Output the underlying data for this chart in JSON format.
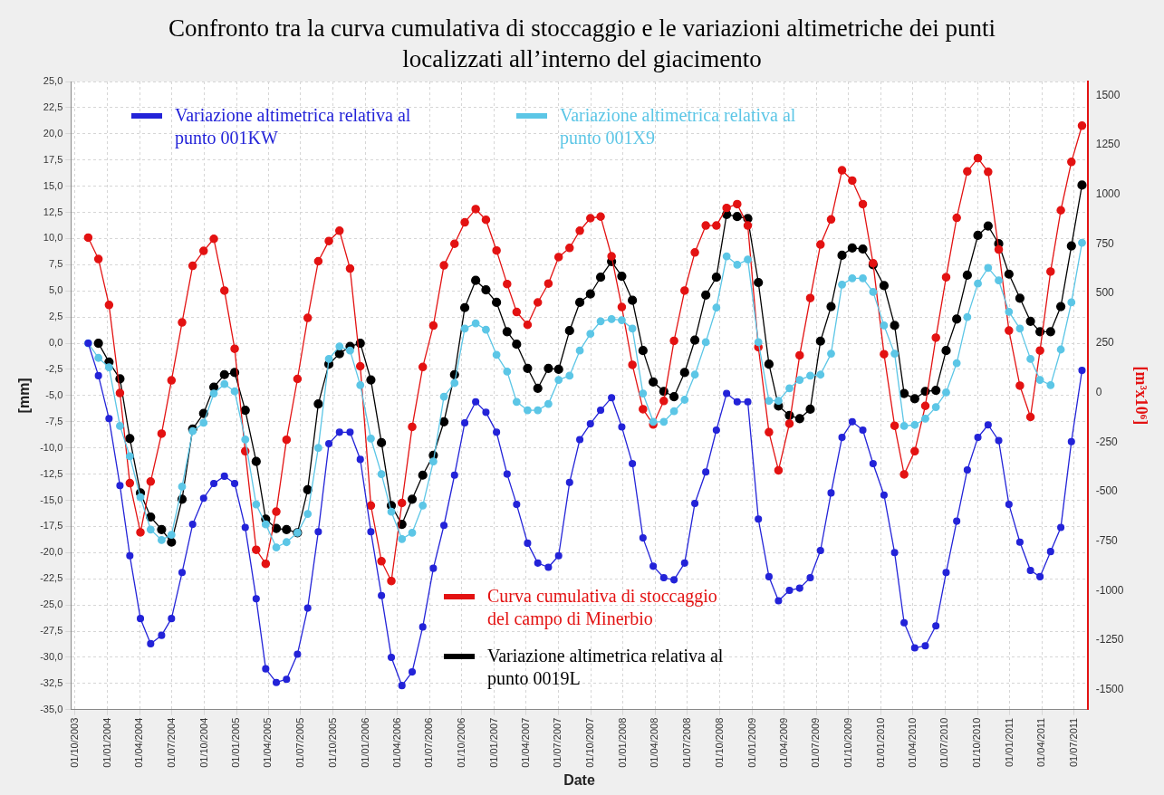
{
  "chart_data": {
    "type": "line",
    "title": "Confronto tra la curva cumulativa di stoccaggio e le variazioni altimetriche dei punti localizzati all’interno del giacimento",
    "xlabel": "Date",
    "ylabel": "[mm]",
    "y2label": "[m³x10⁶]",
    "x": [
      "2003-11-07",
      "2003-12-06",
      "2004-01-05",
      "2004-02-05",
      "2004-03-04",
      "2004-04-03",
      "2004-05-02",
      "2004-06-02",
      "2004-06-30",
      "2004-07-30",
      "2004-08-29",
      "2004-09-29",
      "2004-10-28",
      "2004-11-27",
      "2004-12-26",
      "2005-01-25",
      "2005-02-25",
      "2005-03-24",
      "2005-04-23",
      "2005-05-22",
      "2005-06-22",
      "2005-07-21",
      "2005-08-20",
      "2005-09-19",
      "2005-10-19",
      "2005-11-18",
      "2005-12-17",
      "2006-01-16",
      "2006-02-15",
      "2006-03-15",
      "2006-04-14",
      "2006-05-13",
      "2006-06-12",
      "2006-07-12",
      "2006-08-11",
      "2006-09-10",
      "2006-10-09",
      "2006-11-09",
      "2006-12-08",
      "2007-01-07",
      "2007-02-06",
      "2007-03-05",
      "2007-04-05",
      "2007-05-04",
      "2007-06-03",
      "2007-07-02",
      "2007-08-02",
      "2007-08-31",
      "2007-09-30",
      "2007-10-29",
      "2007-11-29",
      "2007-12-28",
      "2008-01-27",
      "2008-02-26",
      "2008-03-26",
      "2008-04-25",
      "2008-05-24",
      "2008-06-23",
      "2008-07-22",
      "2008-08-22",
      "2008-09-21",
      "2008-10-20",
      "2008-11-19",
      "2008-12-19",
      "2009-01-18",
      "2009-02-17",
      "2009-03-16",
      "2009-04-16",
      "2009-05-15",
      "2009-06-14",
      "2009-07-13",
      "2009-08-12",
      "2009-09-12",
      "2009-10-11",
      "2009-11-10",
      "2009-12-09",
      "2010-01-09",
      "2010-02-08",
      "2010-03-07",
      "2010-04-06",
      "2010-05-06",
      "2010-06-05",
      "2010-07-04",
      "2010-08-03",
      "2010-09-02",
      "2010-10-02",
      "2010-10-31",
      "2010-11-30",
      "2010-12-29",
      "2011-01-29",
      "2011-02-28",
      "2011-03-27",
      "2011-04-26",
      "2011-05-25",
      "2011-06-24",
      "2011-07-24"
    ],
    "series": [
      {
        "name": "Variazione altimetrica relativa al punto 001KW",
        "color": "#2323d8",
        "values": [
          0,
          -3.1,
          -7.2,
          -13.6,
          -20.3,
          -26.3,
          -28.7,
          -27.9,
          -26.3,
          -21.9,
          -17.3,
          -14.8,
          -13.4,
          -12.7,
          -13.4,
          -17.6,
          -24.4,
          -31.1,
          -32.4,
          -32.1,
          -29.7,
          -25.3,
          -18.0,
          -9.6,
          -8.5,
          -8.5,
          -11.1,
          -18.0,
          -24.1,
          -30.0,
          -32.7,
          -31.4,
          -27.1,
          -21.5,
          -17.4,
          -12.6,
          -7.6,
          -5.6,
          -6.6,
          -8.5,
          -12.5,
          -15.4,
          -19.1,
          -21.0,
          -21.4,
          -20.3,
          -13.3,
          -9.2,
          -7.7,
          -6.4,
          -5.2,
          -8.0,
          -11.5,
          -18.6,
          -21.3,
          -22.4,
          -22.6,
          -21.0,
          -15.3,
          -12.3,
          -8.3,
          -4.8,
          -5.6,
          -5.6,
          -16.8,
          -22.3,
          -24.6,
          -23.6,
          -23.4,
          -22.4,
          -19.8,
          -14.3,
          -9.0,
          -7.5,
          -8.3,
          -11.5,
          -14.5,
          -20.0,
          -26.7,
          -29.1,
          -28.9,
          -27.0,
          -21.9,
          -17.0,
          -12.1,
          -9.0,
          -7.8,
          -9.3,
          -15.4,
          -19.0,
          -21.7,
          -22.3,
          -19.9,
          -17.6,
          -9.4,
          -2.6
        ]
      },
      {
        "name": "Variazione altimetrica relativa al punto 001X9",
        "color": "#5cc6e6",
        "values": [
          0,
          -1.4,
          -2.3,
          -7.9,
          -10.8,
          -14.7,
          -17.8,
          -18.8,
          -18.3,
          -13.7,
          -8.4,
          -7.6,
          -4.8,
          -3.9,
          -4.6,
          -9.2,
          -15.4,
          -17.3,
          -19.5,
          -19.0,
          -18.1,
          -16.3,
          -10.0,
          -1.5,
          -0.3,
          -0.7,
          -4.0,
          -9.1,
          -12.5,
          -16.1,
          -18.7,
          -18.1,
          -15.5,
          -11.3,
          -5.1,
          -3.8,
          1.4,
          1.9,
          1.3,
          -1.1,
          -2.7,
          -5.6,
          -6.4,
          -6.4,
          -5.8,
          -3.5,
          -3.1,
          -0.7,
          0.9,
          2.1,
          2.3,
          2.2,
          1.4,
          -4.8,
          -7.5,
          -7.5,
          -6.5,
          -5.4,
          -3.0,
          0.1,
          3.4,
          8.3,
          7.5,
          8.0,
          0.1,
          -5.5,
          -5.5,
          -4.3,
          -3.5,
          -3.1,
          -3.0,
          -1.0,
          5.6,
          6.2,
          6.2,
          4.9,
          1.7,
          -1.0,
          -7.9,
          -7.8,
          -7.2,
          -6.1,
          -4.7,
          -1.9,
          2.5,
          5.7,
          7.2,
          6.0,
          3.0,
          1.4,
          -1.5,
          -3.5,
          -4.0,
          -0.6,
          3.9,
          9.6
        ]
      },
      {
        "name": "Curva cumulativa di stoccaggio del campo di Minerbio",
        "color": "#e31212",
        "axis": "y2",
        "values": [
          782,
          674,
          442,
          -2,
          -457,
          -705,
          -449,
          -207,
          62,
          354,
          640,
          715,
          776,
          515,
          221,
          -296,
          -793,
          -864,
          -601,
          -238,
          69,
          377,
          663,
          765,
          817,
          626,
          133,
          -570,
          -851,
          -951,
          -557,
          -173,
          129,
          338,
          642,
          751,
          859,
          926,
          872,
          717,
          548,
          407,
          342,
          455,
          550,
          684,
          730,
          817,
          880,
          888,
          688,
          432,
          140,
          -84,
          -161,
          -42,
          261,
          515,
          707,
          843,
          843,
          932,
          951,
          843,
          229,
          -200,
          -392,
          -157,
          188,
          477,
          747,
          874,
          1122,
          1070,
          951,
          653,
          194,
          -167,
          -413,
          -296,
          -67,
          277,
          582,
          882,
          1116,
          1183,
          1114,
          722,
          313,
          35,
          -123,
          212,
          611,
          920,
          1164,
          1347
        ]
      },
      {
        "name": "Variazione altimetrica relativa al punto 0019L",
        "color": "#000000",
        "values": [
          null,
          0.0,
          -1.8,
          -3.4,
          -9.1,
          -14.3,
          -16.6,
          -17.8,
          -19.0,
          -14.9,
          -8.2,
          -6.7,
          -4.2,
          -3.0,
          -2.8,
          -6.4,
          -11.3,
          -16.8,
          -17.7,
          -17.8,
          -18.1,
          -14.0,
          -5.8,
          -2.0,
          -1.0,
          -0.3,
          0.0,
          -3.5,
          -9.5,
          -15.5,
          -17.3,
          -14.9,
          -12.6,
          -10.7,
          -7.5,
          -3.0,
          3.4,
          6.0,
          5.1,
          3.9,
          1.1,
          -0.1,
          -2.4,
          -4.3,
          -2.4,
          -2.5,
          1.2,
          3.9,
          4.7,
          6.3,
          7.8,
          6.4,
          4.1,
          -0.7,
          -3.7,
          -4.6,
          -5.1,
          -2.8,
          0.3,
          4.6,
          6.3,
          12.3,
          12.1,
          11.9,
          5.8,
          -2.0,
          -6.0,
          -6.9,
          -7.2,
          -6.3,
          0.2,
          3.5,
          8.4,
          9.1,
          9.0,
          7.5,
          5.5,
          1.7,
          -4.8,
          -5.3,
          -4.6,
          -4.5,
          -0.7,
          2.3,
          6.5,
          10.3,
          11.2,
          9.5,
          6.6,
          4.3,
          2.1,
          1.1,
          1.1,
          3.5,
          9.3,
          15.1
        ]
      }
    ],
    "xlim": [
      "2003-09-19",
      "2011-08-09"
    ],
    "xticks": [
      {
        "value": "2003-10-01",
        "label": "01/10/2003"
      },
      {
        "value": "2004-01-01",
        "label": "01/01/2004"
      },
      {
        "value": "2004-04-01",
        "label": "01/04/2004"
      },
      {
        "value": "2004-07-01",
        "label": "01/07/2004"
      },
      {
        "value": "2004-10-01",
        "label": "01/10/2004"
      },
      {
        "value": "2005-01-01",
        "label": "01/01/2005"
      },
      {
        "value": "2005-04-01",
        "label": "01/04/2005"
      },
      {
        "value": "2005-07-01",
        "label": "01/07/2005"
      },
      {
        "value": "2005-10-01",
        "label": "01/10/2005"
      },
      {
        "value": "2006-01-01",
        "label": "01/01/2006"
      },
      {
        "value": "2006-04-01",
        "label": "01/04/2006"
      },
      {
        "value": "2006-07-01",
        "label": "01/07/2006"
      },
      {
        "value": "2006-10-01",
        "label": "01/10/2006"
      },
      {
        "value": "2007-01-01",
        "label": "01/01/2007"
      },
      {
        "value": "2007-04-01",
        "label": "01/04/2007"
      },
      {
        "value": "2007-07-01",
        "label": "01/07/2007"
      },
      {
        "value": "2007-10-01",
        "label": "01/10/2007"
      },
      {
        "value": "2008-01-01",
        "label": "01/01/2008"
      },
      {
        "value": "2008-04-01",
        "label": "01/04/2008"
      },
      {
        "value": "2008-07-01",
        "label": "01/07/2008"
      },
      {
        "value": "2008-10-01",
        "label": "01/10/2008"
      },
      {
        "value": "2009-01-01",
        "label": "01/01/2009"
      },
      {
        "value": "2009-04-01",
        "label": "01/04/2009"
      },
      {
        "value": "2009-07-01",
        "label": "01/07/2009"
      },
      {
        "value": "2009-10-01",
        "label": "01/10/2009"
      },
      {
        "value": "2010-01-01",
        "label": "01/01/2010"
      },
      {
        "value": "2010-04-01",
        "label": "01/04/2010"
      },
      {
        "value": "2010-07-01",
        "label": "01/07/2010"
      },
      {
        "value": "2010-10-01",
        "label": "01/10/2010"
      },
      {
        "value": "2011-01-01",
        "label": "01/01/2011"
      },
      {
        "value": "2011-04-01",
        "label": "01/04/2011"
      },
      {
        "value": "2011-07-01",
        "label": "01/07/2011"
      }
    ],
    "ylim": [
      -35,
      25
    ],
    "yticks": [
      {
        "value": -35,
        "label": "-35,0"
      },
      {
        "value": -32.5,
        "label": "-32,5"
      },
      {
        "value": -30,
        "label": "-30,0"
      },
      {
        "value": -27.5,
        "label": "-27,5"
      },
      {
        "value": -25,
        "label": "-25,0"
      },
      {
        "value": -22.5,
        "label": "-22,5"
      },
      {
        "value": -20,
        "label": "-20,0"
      },
      {
        "value": -17.5,
        "label": "-17,5"
      },
      {
        "value": -15,
        "label": "-15,0"
      },
      {
        "value": -12.5,
        "label": "-12,5"
      },
      {
        "value": -10,
        "label": "-10,0"
      },
      {
        "value": -7.5,
        "label": "-7,5"
      },
      {
        "value": -5,
        "label": "-5,0"
      },
      {
        "value": -2.5,
        "label": "-2,5"
      },
      {
        "value": 0,
        "label": "0,0"
      },
      {
        "value": 2.5,
        "label": "2,5"
      },
      {
        "value": 5,
        "label": "5,0"
      },
      {
        "value": 7.5,
        "label": "7,5"
      },
      {
        "value": 10,
        "label": "10,0"
      },
      {
        "value": 12.5,
        "label": "12,5"
      },
      {
        "value": 15,
        "label": "15,0"
      },
      {
        "value": 17.5,
        "label": "17,5"
      },
      {
        "value": 20,
        "label": "20,0"
      },
      {
        "value": 22.5,
        "label": "22,5"
      },
      {
        "value": 25,
        "label": "25,0"
      }
    ],
    "y2lim": [
      -1600,
      1570
    ],
    "y2ticks": [
      -1500,
      -1250,
      -1000,
      -750,
      -500,
      -250,
      0,
      250,
      500,
      750,
      1000,
      1250,
      1500
    ],
    "grid": true,
    "legend": "left",
    "marker": "circle",
    "line_style": "solid"
  }
}
